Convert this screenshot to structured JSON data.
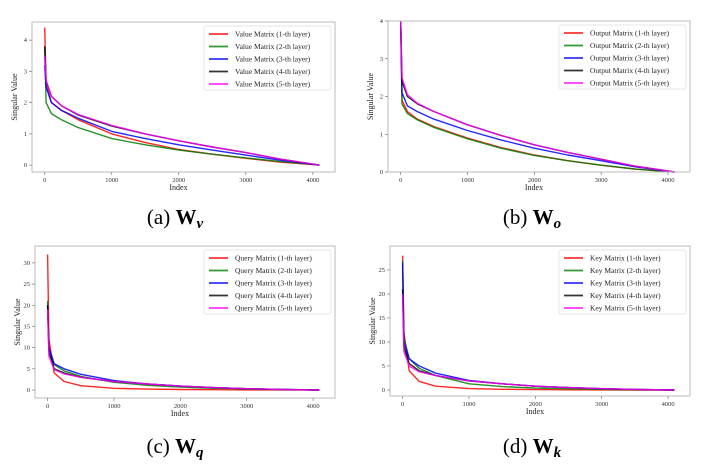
{
  "colors": {
    "layer1": "#ff0000",
    "layer2": "#008000",
    "layer3": "#0000ff",
    "layer4": "#000000",
    "layer5": "#ff00ff"
  },
  "chart_data": [
    {
      "type": "line",
      "caption_prefix": "(a)",
      "caption_letter": "W",
      "caption_sub": "v",
      "xlabel": "Index",
      "ylabel": "Singular Value",
      "xlim": [
        -190,
        4330
      ],
      "ylim": [
        -0.22,
        4.58
      ],
      "xticks": [
        0,
        1000,
        2000,
        3000,
        4000
      ],
      "yticks": [
        0,
        1,
        2,
        3,
        4
      ],
      "legend": "top-right",
      "grid": false,
      "x": [
        0,
        20,
        100,
        250,
        500,
        1000,
        1500,
        2000,
        2500,
        3000,
        3500,
        4096
      ],
      "series": [
        {
          "name": "Value Matrix (1-th layer)",
          "color": "#ff0000",
          "values": [
            4.4,
            2.6,
            2.0,
            1.75,
            1.45,
            1.0,
            0.72,
            0.5,
            0.35,
            0.22,
            0.1,
            0
          ]
        },
        {
          "name": "Value Matrix (2-th layer)",
          "color": "#008000",
          "values": [
            3.8,
            2.0,
            1.65,
            1.45,
            1.2,
            0.85,
            0.65,
            0.48,
            0.35,
            0.23,
            0.12,
            0
          ]
        },
        {
          "name": "Value Matrix (3-th layer)",
          "color": "#0000ff",
          "values": [
            3.2,
            2.5,
            2.0,
            1.75,
            1.5,
            1.08,
            0.85,
            0.65,
            0.48,
            0.32,
            0.16,
            0
          ]
        },
        {
          "name": "Value Matrix (4-th layer)",
          "color": "#000000",
          "values": [
            3.8,
            2.7,
            2.2,
            1.9,
            1.6,
            1.25,
            1.0,
            0.78,
            0.58,
            0.4,
            0.2,
            0
          ]
        },
        {
          "name": "Value Matrix (5-th layer)",
          "color": "#ff00ff",
          "values": [
            3.5,
            2.7,
            2.2,
            1.9,
            1.62,
            1.27,
            1.0,
            0.78,
            0.58,
            0.4,
            0.2,
            0
          ]
        }
      ]
    },
    {
      "type": "line",
      "caption_prefix": "(b)",
      "caption_letter": "W",
      "caption_sub": "o",
      "xlabel": "Index",
      "ylabel": "Singular Value",
      "xlim": [
        -190,
        4330
      ],
      "ylim": [
        0,
        4
      ],
      "xticks": [
        0,
        1000,
        2000,
        3000,
        4000
      ],
      "yticks": [
        0,
        1,
        2,
        3,
        4
      ],
      "legend": "top-right",
      "grid": false,
      "x": [
        0,
        20,
        100,
        250,
        500,
        1000,
        1500,
        2000,
        2500,
        3000,
        3500,
        4096
      ],
      "series": [
        {
          "name": "Output Matrix (1-th layer)",
          "color": "#ff0000",
          "values": [
            4,
            1.9,
            1.6,
            1.4,
            1.2,
            0.9,
            0.65,
            0.45,
            0.3,
            0.18,
            0.08,
            0
          ]
        },
        {
          "name": "Output Matrix (2-th layer)",
          "color": "#008000",
          "values": [
            4,
            1.8,
            1.55,
            1.38,
            1.18,
            0.88,
            0.63,
            0.44,
            0.3,
            0.18,
            0.08,
            0
          ]
        },
        {
          "name": "Output Matrix (3-th layer)",
          "color": "#0000ff",
          "values": [
            4,
            2.1,
            1.75,
            1.6,
            1.4,
            1.1,
            0.85,
            0.63,
            0.45,
            0.3,
            0.14,
            0
          ]
        },
        {
          "name": "Output Matrix (4-th layer)",
          "color": "#000000",
          "values": [
            4,
            2.4,
            2.0,
            1.8,
            1.6,
            1.25,
            0.97,
            0.72,
            0.52,
            0.34,
            0.16,
            0
          ]
        },
        {
          "name": "Output Matrix (5-th layer)",
          "color": "#ff00ff",
          "values": [
            4,
            2.5,
            2.05,
            1.82,
            1.6,
            1.25,
            0.97,
            0.72,
            0.52,
            0.34,
            0.16,
            0
          ]
        }
      ]
    },
    {
      "type": "line",
      "caption_prefix": "(c)",
      "caption_letter": "W",
      "caption_sub": "q",
      "xlabel": "Index",
      "ylabel": "Singular Value",
      "xlim": [
        -190,
        4330
      ],
      "ylim": [
        -1.9,
        34
      ],
      "xticks": [
        0,
        1000,
        2000,
        3000,
        4000
      ],
      "yticks": [
        0,
        5,
        10,
        15,
        20,
        25,
        30
      ],
      "legend": "top-right",
      "grid": false,
      "x": [
        0,
        20,
        100,
        250,
        500,
        1000,
        1500,
        2000,
        2500,
        3000,
        3500,
        4096
      ],
      "series": [
        {
          "name": "Query Matrix (1-th layer)",
          "color": "#ff0000",
          "values": [
            32,
            12,
            4,
            2,
            1,
            0.4,
            0.2,
            0.1,
            0.05,
            0.02,
            0.01,
            0
          ]
        },
        {
          "name": "Query Matrix (2-th layer)",
          "color": "#008000",
          "values": [
            21,
            10,
            6,
            4.5,
            3.2,
            1.8,
            1.1,
            0.7,
            0.4,
            0.2,
            0.1,
            0
          ]
        },
        {
          "name": "Query Matrix (3-th layer)",
          "color": "#0000ff",
          "values": [
            20,
            10,
            6.2,
            5,
            3.7,
            2.2,
            1.4,
            0.9,
            0.55,
            0.3,
            0.12,
            0
          ]
        },
        {
          "name": "Query Matrix (4-th layer)",
          "color": "#000000",
          "values": [
            20,
            9,
            5,
            4,
            3,
            2,
            1.4,
            0.9,
            0.55,
            0.3,
            0.12,
            0
          ]
        },
        {
          "name": "Query Matrix (5-th layer)",
          "color": "#ff00ff",
          "values": [
            19,
            8,
            4.8,
            3.8,
            3,
            2,
            1.4,
            0.9,
            0.55,
            0.3,
            0.12,
            0
          ]
        }
      ]
    },
    {
      "type": "line",
      "caption_prefix": "(d)",
      "caption_letter": "W",
      "caption_sub": "k",
      "xlabel": "Index",
      "ylabel": "Singular Value",
      "xlim": [
        -190,
        4330
      ],
      "ylim": [
        -1.25,
        30
      ],
      "xticks": [
        0,
        1000,
        2000,
        3000,
        4000
      ],
      "yticks": [
        0,
        5,
        10,
        15,
        20,
        25
      ],
      "legend": "top-right",
      "grid": false,
      "x": [
        0,
        20,
        100,
        250,
        500,
        1000,
        1500,
        2000,
        2500,
        3000,
        3500,
        4096
      ],
      "series": [
        {
          "name": "Key Matrix (1-th layer)",
          "color": "#ff0000",
          "values": [
            28,
            12,
            4,
            1.8,
            0.8,
            0.3,
            0.15,
            0.08,
            0.04,
            0.02,
            0.01,
            0
          ]
        },
        {
          "name": "Key Matrix (2-th layer)",
          "color": "#008000",
          "values": [
            27,
            11,
            6.5,
            4.5,
            3,
            1.3,
            0.7,
            0.4,
            0.25,
            0.12,
            0.05,
            0
          ]
        },
        {
          "name": "Key Matrix (3-th layer)",
          "color": "#0000ff",
          "values": [
            26.5,
            10,
            6.5,
            5,
            3.5,
            2,
            1.3,
            0.8,
            0.5,
            0.28,
            0.12,
            0
          ]
        },
        {
          "name": "Key Matrix (4-th layer)",
          "color": "#000000",
          "values": [
            21,
            9,
            5.5,
            4,
            3,
            1.9,
            1.3,
            0.8,
            0.5,
            0.28,
            0.12,
            0
          ]
        },
        {
          "name": "Key Matrix (5-th layer)",
          "color": "#ff00ff",
          "values": [
            20,
            8,
            5,
            3.8,
            3,
            1.9,
            1.3,
            0.8,
            0.5,
            0.28,
            0.12,
            0
          ]
        }
      ]
    }
  ]
}
